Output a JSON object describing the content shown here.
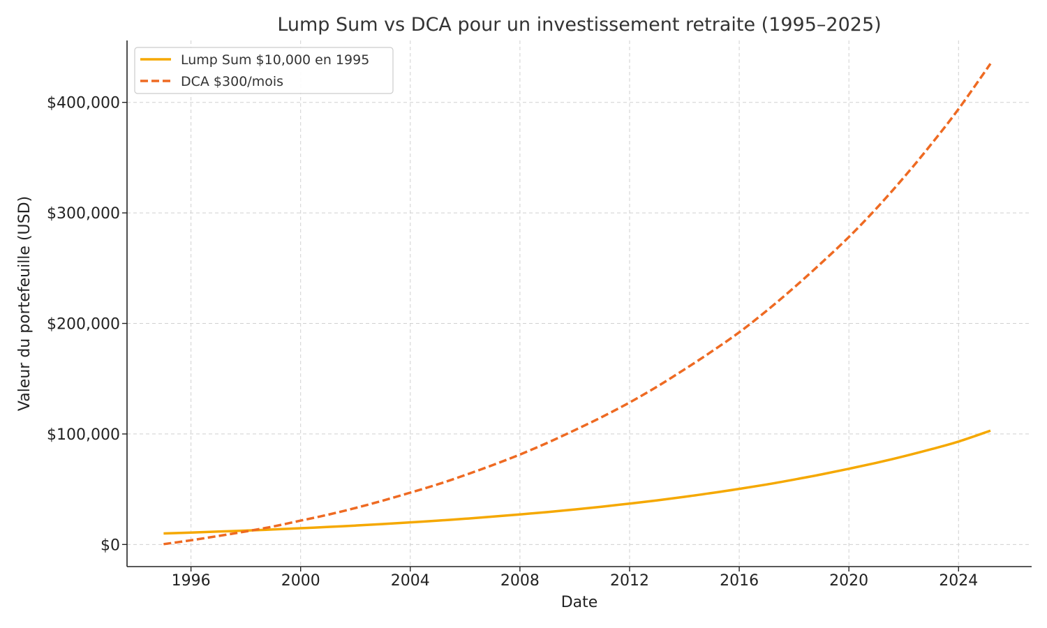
{
  "chart_data": {
    "type": "line",
    "title": "Lump Sum vs DCA pour un investissement retraite (1995–2025)",
    "xlabel": "Date",
    "ylabel": "Valeur du portefeuille (USD)",
    "xlim": [
      "1993-09-01",
      "2026-09-01"
    ],
    "ylim": [
      -20000,
      456000
    ],
    "x_ticks": [
      {
        "date": "1996-01-01",
        "label": "1996"
      },
      {
        "date": "2000-01-01",
        "label": "2000"
      },
      {
        "date": "2004-01-01",
        "label": "2004"
      },
      {
        "date": "2008-01-01",
        "label": "2008"
      },
      {
        "date": "2012-01-01",
        "label": "2012"
      },
      {
        "date": "2016-01-01",
        "label": "2016"
      },
      {
        "date": "2020-01-01",
        "label": "2020"
      },
      {
        "date": "2024-01-01",
        "label": "2024"
      }
    ],
    "y_ticks": [
      {
        "value": 0,
        "label": "$0"
      },
      {
        "value": 100000,
        "label": "$100,000"
      },
      {
        "value": 200000,
        "label": "$200,000"
      },
      {
        "value": 300000,
        "label": "$300,000"
      },
      {
        "value": 400000,
        "label": "$400,000"
      }
    ],
    "grid": true,
    "legend": "top-left",
    "series": [
      {
        "name": "Lump Sum $10,000 en 1995",
        "color": "#f5a800",
        "style": "solid",
        "x": [
          "1995-01-01",
          "1996-01-01",
          "1997-01-01",
          "1998-01-01",
          "1999-01-01",
          "2000-01-01",
          "2001-01-01",
          "2002-01-01",
          "2003-01-01",
          "2004-01-01",
          "2005-01-01",
          "2006-01-01",
          "2007-01-01",
          "2008-01-01",
          "2009-01-01",
          "2010-01-01",
          "2011-01-01",
          "2012-01-01",
          "2013-01-01",
          "2014-01-01",
          "2015-01-01",
          "2016-01-01",
          "2017-01-01",
          "2018-01-01",
          "2019-01-01",
          "2020-01-01",
          "2021-01-01",
          "2022-01-01",
          "2023-01-01",
          "2024-01-01",
          "2025-03-01"
        ],
        "values": [
          10000,
          10800,
          11700,
          12600,
          13600,
          14700,
          15900,
          17100,
          18500,
          20000,
          21600,
          23300,
          25200,
          27200,
          29300,
          31700,
          34200,
          37000,
          39900,
          43100,
          46600,
          50300,
          54300,
          58700,
          63400,
          68500,
          73900,
          79800,
          86200,
          93100,
          103000
        ]
      },
      {
        "name": "DCA $300/mois",
        "color": "#ee6a22",
        "style": "dashed",
        "x": [
          "1995-01-01",
          "1996-01-01",
          "1997-01-01",
          "1998-01-01",
          "1999-01-01",
          "2000-01-01",
          "2001-01-01",
          "2002-01-01",
          "2003-01-01",
          "2004-01-01",
          "2005-01-01",
          "2006-01-01",
          "2007-01-01",
          "2008-01-01",
          "2009-01-01",
          "2010-01-01",
          "2011-01-01",
          "2012-01-01",
          "2013-01-01",
          "2014-01-01",
          "2015-01-01",
          "2016-01-01",
          "2017-01-01",
          "2018-01-01",
          "2019-01-01",
          "2020-01-01",
          "2021-01-01",
          "2022-01-01",
          "2023-01-01",
          "2024-01-01",
          "2025-03-01"
        ],
        "values": [
          300,
          3800,
          7700,
          11800,
          16300,
          21600,
          27000,
          33000,
          39700,
          46900,
          54400,
          62800,
          71800,
          81400,
          92000,
          103500,
          115500,
          128500,
          142800,
          158400,
          174700,
          192000,
          211500,
          232500,
          254800,
          278200,
          304000,
          332000,
          362000,
          394000,
          435000
        ]
      }
    ]
  }
}
